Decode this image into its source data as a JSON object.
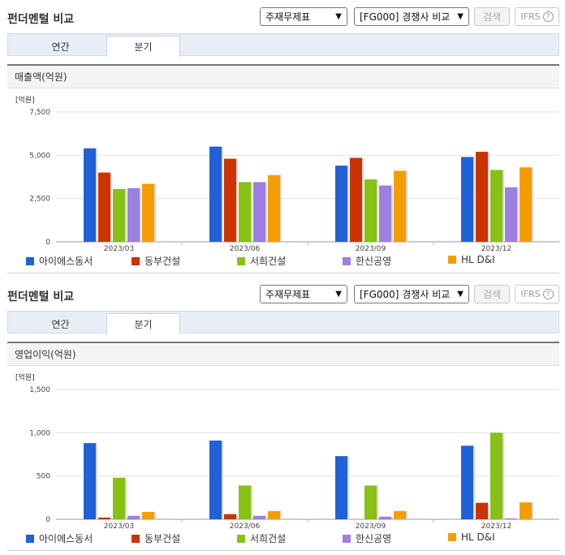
{
  "panels": [
    {
      "title": "펀더멘털 비교",
      "statement_select": "주재무제표",
      "competitor_select": "[FG000] 경쟁사 비교",
      "search_label": "검색",
      "ifrs_label": "IFRS",
      "tabs": [
        {
          "label": "연간"
        },
        {
          "label": "분기"
        }
      ],
      "section_title": "매출액(억원)"
    },
    {
      "title": "펀더멘털 비교",
      "statement_select": "주재무제표",
      "competitor_select": "[FG000] 경쟁사 비교",
      "search_label": "검색",
      "ifrs_label": "IFRS",
      "tabs": [
        {
          "label": "연간"
        },
        {
          "label": "분기"
        }
      ],
      "section_title": "영업이익(억원)"
    }
  ],
  "legend": [
    {
      "name": "아이에스동서",
      "color": "#2161d6"
    },
    {
      "name": "동부건설",
      "color": "#cc3300"
    },
    {
      "name": "서희건설",
      "color": "#86c114"
    },
    {
      "name": "한신공영",
      "color": "#9e7ee0"
    },
    {
      "name": "HL D&I",
      "color": "#f59d00"
    }
  ],
  "chart_data": [
    {
      "type": "bar",
      "unit_label": "[억원]",
      "categories": [
        "2023/03",
        "2023/06",
        "2023/09",
        "2023/12"
      ],
      "ylim": [
        0,
        7500
      ],
      "yticks": [
        0,
        2500,
        5000,
        7500
      ],
      "ytick_labels": [
        "0",
        "2,500",
        "5,000",
        "7,500"
      ],
      "series": [
        {
          "name": "아이에스동서",
          "values": [
            5400,
            5500,
            4400,
            4900
          ]
        },
        {
          "name": "동부건설",
          "values": [
            4000,
            4800,
            4850,
            5200
          ]
        },
        {
          "name": "서희건설",
          "values": [
            3050,
            3450,
            3600,
            4150
          ]
        },
        {
          "name": "한신공영",
          "values": [
            3100,
            3450,
            3250,
            3150
          ]
        },
        {
          "name": "HL D&I",
          "values": [
            3350,
            3850,
            4100,
            4300
          ]
        }
      ],
      "grid": true,
      "legend_position": "bottom"
    },
    {
      "type": "bar",
      "unit_label": "[억원]",
      "categories": [
        "2023/03",
        "2023/06",
        "2023/09",
        "2023/12"
      ],
      "ylim": [
        0,
        1500
      ],
      "yticks": [
        0,
        500,
        1000,
        1500
      ],
      "ytick_labels": [
        "0",
        "500",
        "1,000",
        "1,500"
      ],
      "series": [
        {
          "name": "아이에스동서",
          "values": [
            880,
            910,
            730,
            850
          ]
        },
        {
          "name": "동부건설",
          "values": [
            20,
            60,
            0,
            190
          ]
        },
        {
          "name": "서희건설",
          "values": [
            480,
            390,
            390,
            1000
          ]
        },
        {
          "name": "한신공영",
          "values": [
            40,
            40,
            30,
            10
          ]
        },
        {
          "name": "HL D&I",
          "values": [
            85,
            95,
            95,
            195
          ]
        }
      ],
      "grid": true,
      "legend_position": "bottom"
    }
  ]
}
